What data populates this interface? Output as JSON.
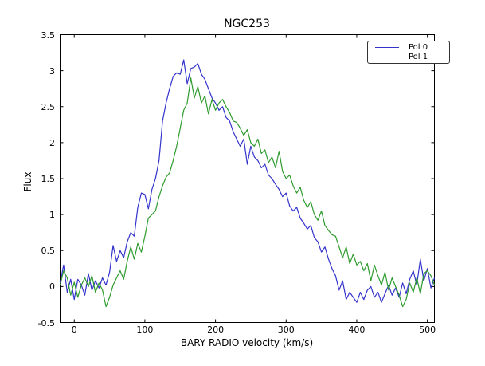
{
  "figure": {
    "title": "NGC253",
    "xlabel": "BARY RADIO velocity (km/s)",
    "ylabel": "Flux",
    "background_color": "#ffffff",
    "spine_color": "#000000"
  },
  "legend": {
    "position": "upper right",
    "entries": [
      {
        "label": "Pol 0",
        "color": "#3333cc"
      },
      {
        "label": "Pol 1",
        "color": "#2e9b2e"
      }
    ]
  },
  "chart_data": {
    "type": "line",
    "title": "NGC253",
    "xlabel": "BARY RADIO velocity (km/s)",
    "ylabel": "Flux",
    "xlim": [
      -20,
      510
    ],
    "ylim": [
      -0.5,
      3.5
    ],
    "grid": false,
    "legend_position": "upper right",
    "xticks": [
      0,
      100,
      200,
      300,
      400,
      500
    ],
    "xtick_labels": [
      "0",
      "100",
      "200",
      "300",
      "400",
      "500"
    ],
    "yticks": [
      -0.5,
      0,
      0.5,
      1,
      1.5,
      2,
      2.5,
      3,
      3.5
    ],
    "ytick_labels": [
      "-0.5",
      "0",
      "0.5",
      "1",
      "1.5",
      "2",
      "2.5",
      "3",
      "3.5"
    ],
    "x": [
      -20,
      -15,
      -10,
      -5,
      0,
      5,
      10,
      15,
      20,
      25,
      30,
      35,
      40,
      45,
      50,
      55,
      60,
      65,
      70,
      75,
      80,
      85,
      90,
      95,
      100,
      105,
      110,
      115,
      120,
      125,
      130,
      135,
      140,
      145,
      150,
      155,
      160,
      165,
      170,
      175,
      180,
      185,
      190,
      195,
      200,
      205,
      210,
      215,
      220,
      225,
      230,
      235,
      240,
      245,
      250,
      255,
      260,
      265,
      270,
      275,
      280,
      285,
      290,
      295,
      300,
      305,
      310,
      315,
      320,
      325,
      330,
      335,
      340,
      345,
      350,
      355,
      360,
      365,
      370,
      375,
      380,
      385,
      390,
      395,
      400,
      405,
      410,
      415,
      420,
      425,
      430,
      435,
      440,
      445,
      450,
      455,
      460,
      465,
      470,
      475,
      480,
      485,
      490,
      495,
      500,
      505,
      510
    ],
    "series": [
      {
        "name": "Pol 0",
        "color": "#3333cc",
        "values": [
          0.05,
          0.3,
          -0.08,
          0.1,
          -0.18,
          0.1,
          0.02,
          -0.12,
          0.18,
          -0.05,
          0.08,
          -0.02,
          0.12,
          0.02,
          0.2,
          0.57,
          0.35,
          0.5,
          0.4,
          0.62,
          0.75,
          0.7,
          1.1,
          1.3,
          1.28,
          1.08,
          1.35,
          1.5,
          1.75,
          2.3,
          2.55,
          2.75,
          2.92,
          2.97,
          2.95,
          3.15,
          2.82,
          3.03,
          3.05,
          3.1,
          2.95,
          2.88,
          2.75,
          2.62,
          2.55,
          2.45,
          2.5,
          2.35,
          2.3,
          2.15,
          2.05,
          1.95,
          2.05,
          1.7,
          1.95,
          1.8,
          1.75,
          1.65,
          1.7,
          1.55,
          1.5,
          1.42,
          1.35,
          1.25,
          1.3,
          1.12,
          1.05,
          1.1,
          0.95,
          0.88,
          0.8,
          0.85,
          0.68,
          0.62,
          0.48,
          0.55,
          0.38,
          0.25,
          0.15,
          -0.05,
          0.08,
          -0.18,
          -0.08,
          -0.15,
          -0.22,
          -0.08,
          -0.18,
          -0.05,
          0.0,
          -0.15,
          -0.08,
          -0.22,
          -0.1,
          0.02,
          -0.12,
          -0.02,
          -0.15,
          0.05,
          -0.1,
          0.1,
          0.22,
          0.02,
          0.38,
          0.08,
          0.25,
          -0.02,
          0.12
        ]
      },
      {
        "name": "Pol 1",
        "color": "#2e9b2e",
        "values": [
          0.02,
          0.22,
          0.12,
          -0.12,
          0.06,
          -0.15,
          0.02,
          0.12,
          0.0,
          0.15,
          -0.08,
          0.05,
          -0.05,
          -0.28,
          -0.15,
          0.02,
          0.12,
          0.22,
          0.1,
          0.35,
          0.55,
          0.38,
          0.6,
          0.48,
          0.7,
          0.95,
          1.0,
          1.05,
          1.25,
          1.4,
          1.52,
          1.58,
          1.75,
          1.95,
          2.2,
          2.45,
          2.55,
          2.9,
          2.62,
          2.78,
          2.55,
          2.65,
          2.4,
          2.6,
          2.45,
          2.55,
          2.6,
          2.5,
          2.42,
          2.3,
          2.28,
          2.2,
          2.1,
          2.18,
          2.0,
          1.95,
          2.05,
          1.85,
          1.9,
          1.72,
          1.8,
          1.65,
          1.88,
          1.6,
          1.5,
          1.55,
          1.4,
          1.3,
          1.38,
          1.2,
          1.1,
          1.18,
          1.0,
          0.92,
          1.05,
          0.85,
          0.78,
          0.72,
          0.7,
          0.55,
          0.4,
          0.55,
          0.32,
          0.45,
          0.3,
          0.35,
          0.22,
          0.32,
          0.08,
          0.3,
          0.15,
          0.02,
          0.2,
          -0.05,
          0.12,
          0.0,
          -0.12,
          -0.28,
          -0.18,
          0.05,
          -0.08,
          0.12,
          -0.1,
          0.18,
          0.22,
          0.15,
          0.02
        ]
      }
    ]
  }
}
